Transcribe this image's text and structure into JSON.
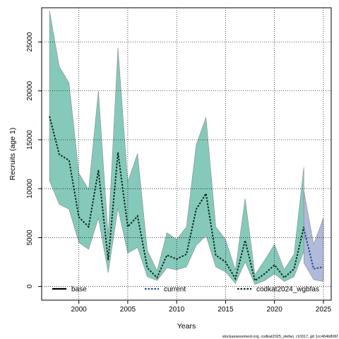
{
  "chart_data": {
    "type": "area",
    "xlabel": "Years",
    "ylabel": "Recruits (age 1)",
    "xlim": [
      1996.2,
      2025.8
    ],
    "ylim": [
      -1400,
      28500
    ],
    "xticks": [
      2000,
      2005,
      2010,
      2015,
      2020,
      2025
    ],
    "yticks": [
      0,
      5000,
      10000,
      15000,
      20000,
      25000
    ],
    "grid": true,
    "legend_position": "bottom",
    "footer": "stockassessment.org, codkat2025_stefan, r10317, git 1cc464b806f",
    "series": [
      {
        "name": "base",
        "color": "#000000",
        "style": "solid",
        "x": [],
        "values": []
      },
      {
        "name": "current",
        "color": "#1f4e8c",
        "band_color": "#7f8fc4",
        "style": "dotted",
        "x": [
          2023,
          2024,
          2025
        ],
        "values": [
          5900,
          1800,
          2000
        ],
        "lower": [
          2400,
          700,
          500
        ],
        "upper": [
          9800,
          4300,
          7000
        ]
      },
      {
        "name": "codkat2024_wgbfas",
        "color": "#0a2a1a",
        "band_color": "#3aa88f",
        "style": "dotted",
        "x": [
          1997,
          1998,
          1999,
          2000,
          2001,
          2002,
          2003,
          2004,
          2005,
          2006,
          2007,
          2008,
          2009,
          2010,
          2011,
          2012,
          2013,
          2014,
          2015,
          2016,
          2017,
          2018,
          2019,
          2020,
          2021,
          2022,
          2023
        ],
        "values": [
          17400,
          13500,
          12900,
          7100,
          6100,
          11900,
          2700,
          13700,
          6100,
          7200,
          1900,
          900,
          3200,
          2800,
          3300,
          7900,
          9500,
          3200,
          2500,
          800,
          4700,
          600,
          1300,
          2200,
          900,
          1800,
          6100
        ],
        "lower": [
          10800,
          8400,
          7900,
          4500,
          3800,
          7000,
          1400,
          8000,
          3400,
          4000,
          1000,
          600,
          1900,
          1700,
          2000,
          4200,
          5200,
          2000,
          1500,
          300,
          2500,
          200,
          600,
          1300,
          500,
          1000,
          3600
        ],
        "upper": [
          28200,
          22500,
          20800,
          11600,
          9900,
          20000,
          5200,
          24400,
          10700,
          13600,
          3700,
          1600,
          5500,
          4800,
          6100,
          14500,
          17300,
          6100,
          4800,
          1700,
          9000,
          1200,
          2700,
          4300,
          1700,
          3300,
          12200
        ]
      }
    ]
  }
}
